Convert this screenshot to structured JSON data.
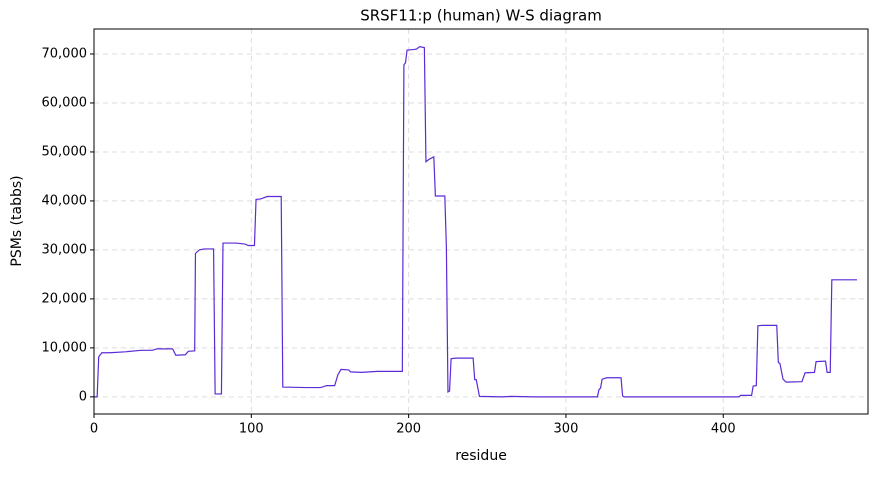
{
  "chart_data": {
    "type": "line",
    "title": "SRSF11:p (human) W-S diagram",
    "x_label": "residue",
    "y_label": "PSMs (tabbs)",
    "x": [
      0,
      2,
      3,
      5,
      10,
      20,
      30,
      37,
      40,
      50,
      52,
      58,
      60,
      64,
      64.5,
      67,
      70,
      76,
      77,
      81,
      82,
      90,
      96,
      98,
      102,
      103,
      106,
      110,
      119,
      120,
      135,
      144,
      148,
      153,
      155,
      157,
      162,
      163,
      170,
      180,
      196,
      197,
      198,
      199,
      203,
      205,
      207,
      210,
      211,
      213,
      216,
      217,
      223,
      224,
      225,
      226,
      227,
      230,
      241,
      242,
      243,
      245,
      260,
      265,
      280,
      320,
      321,
      322,
      323,
      326,
      335,
      336,
      337,
      380,
      410,
      411,
      418,
      419,
      421,
      422,
      425,
      434,
      435,
      436,
      438,
      440,
      450,
      452,
      458,
      459,
      465,
      466,
      468,
      469,
      485
    ],
    "series": [
      {
        "name": "PSMs",
        "color": "#5b2bd6",
        "values": [
          0,
          0,
          8200,
          9000,
          9000,
          9200,
          9500,
          9500,
          9800,
          9800,
          8500,
          8600,
          9300,
          9400,
          29300,
          30000,
          30200,
          30200,
          600,
          600,
          31400,
          31400,
          31200,
          30900,
          30900,
          40300,
          40400,
          40900,
          40900,
          2000,
          1900,
          1900,
          2300,
          2300,
          4500,
          5600,
          5500,
          5100,
          5000,
          5200,
          5200,
          67800,
          68200,
          70800,
          70900,
          71000,
          71500,
          71300,
          48000,
          48500,
          49000,
          41000,
          41000,
          30500,
          1000,
          1200,
          7800,
          7900,
          7900,
          3500,
          3500,
          100,
          0,
          100,
          0,
          0,
          1500,
          1800,
          3600,
          3900,
          3900,
          200,
          0,
          0,
          0,
          300,
          300,
          2200,
          2300,
          14500,
          14600,
          14600,
          7000,
          6800,
          3600,
          3000,
          3100,
          4900,
          5000,
          7200,
          7300,
          5000,
          5000,
          23900,
          23900
        ]
      }
    ],
    "xlim": [
      0,
      492
    ],
    "ylim": [
      -3500,
      75100
    ],
    "xticks": [
      0,
      100,
      200,
      300,
      400
    ],
    "yticks": [
      0,
      {
        "value": 10000,
        "label": "10,000"
      },
      {
        "value": 20000,
        "label": "20,000"
      },
      {
        "value": 30000,
        "label": "30,000"
      },
      {
        "value": 40000,
        "label": "40,000"
      },
      {
        "value": 50000,
        "label": "50,000"
      },
      {
        "value": 60000,
        "label": "60,000"
      },
      {
        "value": 70000,
        "label": "70,000"
      }
    ],
    "grid": true
  }
}
